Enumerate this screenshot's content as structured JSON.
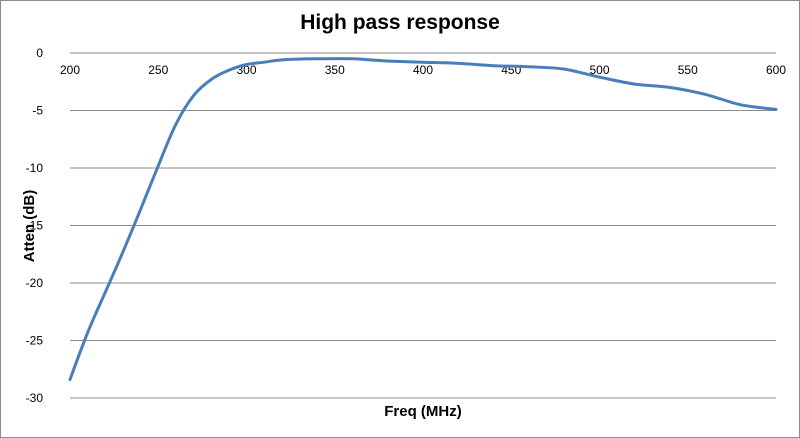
{
  "chart_data": {
    "type": "line",
    "title": "High pass response",
    "xlabel": "Freq (MHz)",
    "ylabel": "Atten (dB)",
    "xlim": [
      200,
      600
    ],
    "ylim": [
      -30,
      0
    ],
    "x_ticks": [
      "200",
      "250",
      "300",
      "350",
      "400",
      "450",
      "500",
      "550",
      "600"
    ],
    "y_ticks": [
      "0",
      "-5",
      "-10",
      "-15",
      "-20",
      "-25",
      "-30"
    ],
    "grid": "horizontal",
    "legend": "none",
    "line_color": "#4a7ebb",
    "series": [
      {
        "x": [
          200,
          210,
          220,
          230,
          240,
          250,
          260,
          270,
          280,
          290,
          300,
          310,
          320,
          340,
          360,
          380,
          400,
          420,
          440,
          460,
          480,
          500,
          520,
          540,
          560,
          580,
          600
        ],
        "values": [
          -28.4,
          -24.3,
          -20.8,
          -17.3,
          -13.6,
          -9.8,
          -6.2,
          -3.7,
          -2.3,
          -1.5,
          -1.0,
          -0.8,
          -0.6,
          -0.5,
          -0.5,
          -0.7,
          -0.8,
          -0.9,
          -1.1,
          -1.2,
          -1.4,
          -2.1,
          -2.7,
          -3.0,
          -3.6,
          -4.5,
          -4.9
        ]
      }
    ]
  }
}
